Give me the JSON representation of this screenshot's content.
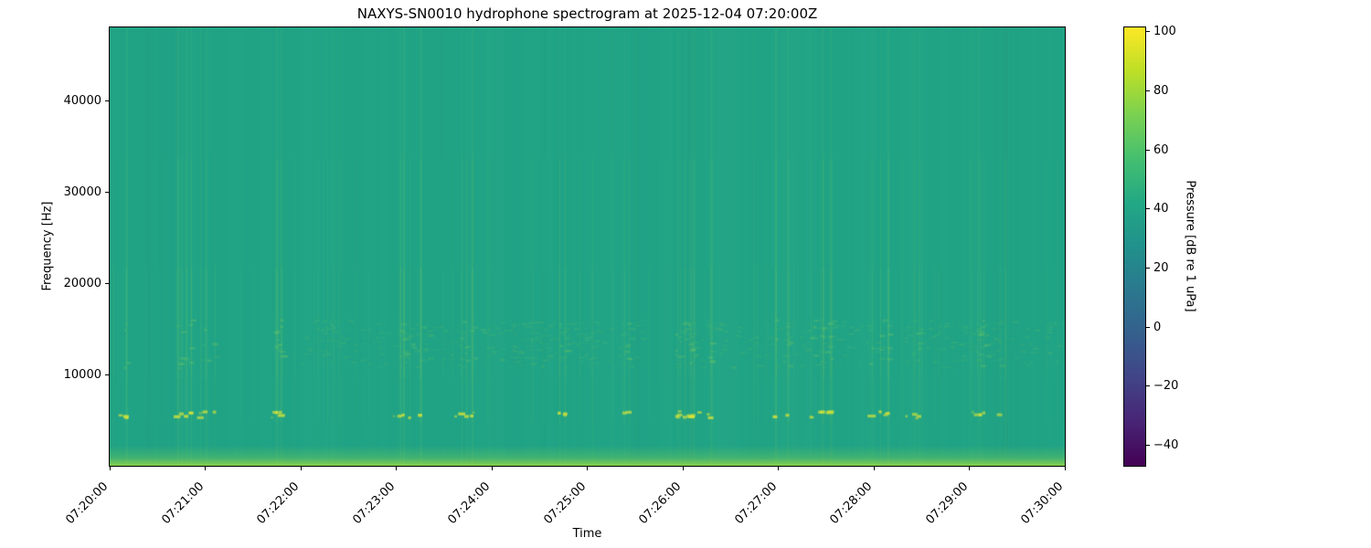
{
  "figure": {
    "background": "#ffffff",
    "text_color": "#000000"
  },
  "chart_data": {
    "type": "heatmap",
    "subtype": "spectrogram",
    "title": "NAXYS-SN0010 hydrophone spectrogram at 2025-12-04 07:20:00Z",
    "xlabel": "Time",
    "ylabel": "Frequency [Hz]",
    "x_ticks": [
      "07:20:00",
      "07:21:00",
      "07:22:00",
      "07:23:00",
      "07:24:00",
      "07:25:00",
      "07:26:00",
      "07:27:00",
      "07:28:00",
      "07:29:00",
      "07:30:00"
    ],
    "y_ticks": [
      {
        "value": 10000,
        "label": "10000"
      },
      {
        "value": 20000,
        "label": "20000"
      },
      {
        "value": 30000,
        "label": "30000"
      },
      {
        "value": 40000,
        "label": "40000"
      }
    ],
    "ylim": [
      0,
      48000
    ],
    "xlim": [
      "07:20:00",
      "07:30:00"
    ],
    "grid": false,
    "colormap": "viridis",
    "colormap_stops": [
      "#440154",
      "#482475",
      "#414487",
      "#355f8d",
      "#2a788e",
      "#21918c",
      "#22a884",
      "#44bf70",
      "#7ad151",
      "#bddf26",
      "#fde725"
    ],
    "colorbar": {
      "label": "Pressure [dB re 1 uPa]",
      "vmin": -47,
      "vmax": 101.5,
      "ticks": [
        {
          "value": 100,
          "label": "100"
        },
        {
          "value": 80,
          "label": "80"
        },
        {
          "value": 60,
          "label": "60"
        },
        {
          "value": 40,
          "label": "40"
        },
        {
          "value": 20,
          "label": "20"
        },
        {
          "value": 0,
          "label": "0"
        },
        {
          "value": -20,
          "label": "−20"
        },
        {
          "value": -40,
          "label": "−40"
        }
      ],
      "position": "right"
    },
    "features": {
      "background_level_db": 45,
      "click_tonal_band_hz": [
        5200,
        6300
      ],
      "mid_speckle_band_hz": [
        11000,
        16000
      ],
      "low_freq_noise_band_hz": [
        0,
        1500
      ],
      "description": "Uniform teal background (~45 dB) with broadband click transients appearing as faint vertical streaks, bright yellow-green tonal dashes near 5.5 kHz, speckled energy between 11-16 kHz, and an elevated noise strip below ~1.5 kHz along the bottom edge; fine speckle texture in the final ~90 s at low frequencies."
    },
    "render": {
      "seed": 1337,
      "base_color": "#21a486",
      "streak_rgb": "140,214,90",
      "dash_rgb": "226,232,52",
      "bottom_rgb": "150,216,66",
      "speckle_rgb": "150,215,80",
      "streak_profile": [
        [
          0.0,
          0.3,
          0.3
        ],
        [
          0.3,
          0.55,
          0.55
        ],
        [
          0.55,
          0.8,
          0.8
        ],
        [
          0.8,
          0.9,
          0.6
        ],
        [
          0.9,
          1.0,
          0.35
        ]
      ],
      "click_clusters": [
        {
          "x_frac": 0.029,
          "count": 2,
          "strength": 1.0
        },
        {
          "x_frac": 0.081,
          "count": 4,
          "strength": 1.0
        },
        {
          "x_frac": 0.1,
          "count": 3,
          "strength": 0.9
        },
        {
          "x_frac": 0.182,
          "count": 4,
          "strength": 0.8
        },
        {
          "x_frac": 0.234,
          "count": 2,
          "strength": 0.6
        },
        {
          "x_frac": 0.316,
          "count": 4,
          "strength": 0.9
        },
        {
          "x_frac": 0.373,
          "count": 3,
          "strength": 0.8
        },
        {
          "x_frac": 0.469,
          "count": 2,
          "strength": 0.9
        },
        {
          "x_frac": 0.536,
          "count": 3,
          "strength": 0.7
        },
        {
          "x_frac": 0.593,
          "count": 3,
          "strength": 0.6
        },
        {
          "x_frac": 0.617,
          "count": 4,
          "strength": 0.7
        },
        {
          "x_frac": 0.705,
          "count": 2,
          "strength": 1.0
        },
        {
          "x_frac": 0.746,
          "count": 5,
          "strength": 0.8
        },
        {
          "x_frac": 0.804,
          "count": 3,
          "strength": 0.9
        },
        {
          "x_frac": 0.852,
          "count": 3,
          "strength": 0.7
        },
        {
          "x_frac": 0.909,
          "count": 4,
          "strength": 0.6
        },
        {
          "x_frac": 0.943,
          "count": 3,
          "strength": 0.5
        }
      ],
      "weak_event_count": 70,
      "speckle_band_frac": [
        0.665,
        0.775
      ],
      "speckle_regions": [
        [
          0.2,
          0.5
        ],
        [
          0.42,
          0.56
        ],
        [
          0.59,
          0.81
        ],
        [
          0.83,
          1.0
        ]
      ],
      "right_texture_start": 0.845
    }
  }
}
